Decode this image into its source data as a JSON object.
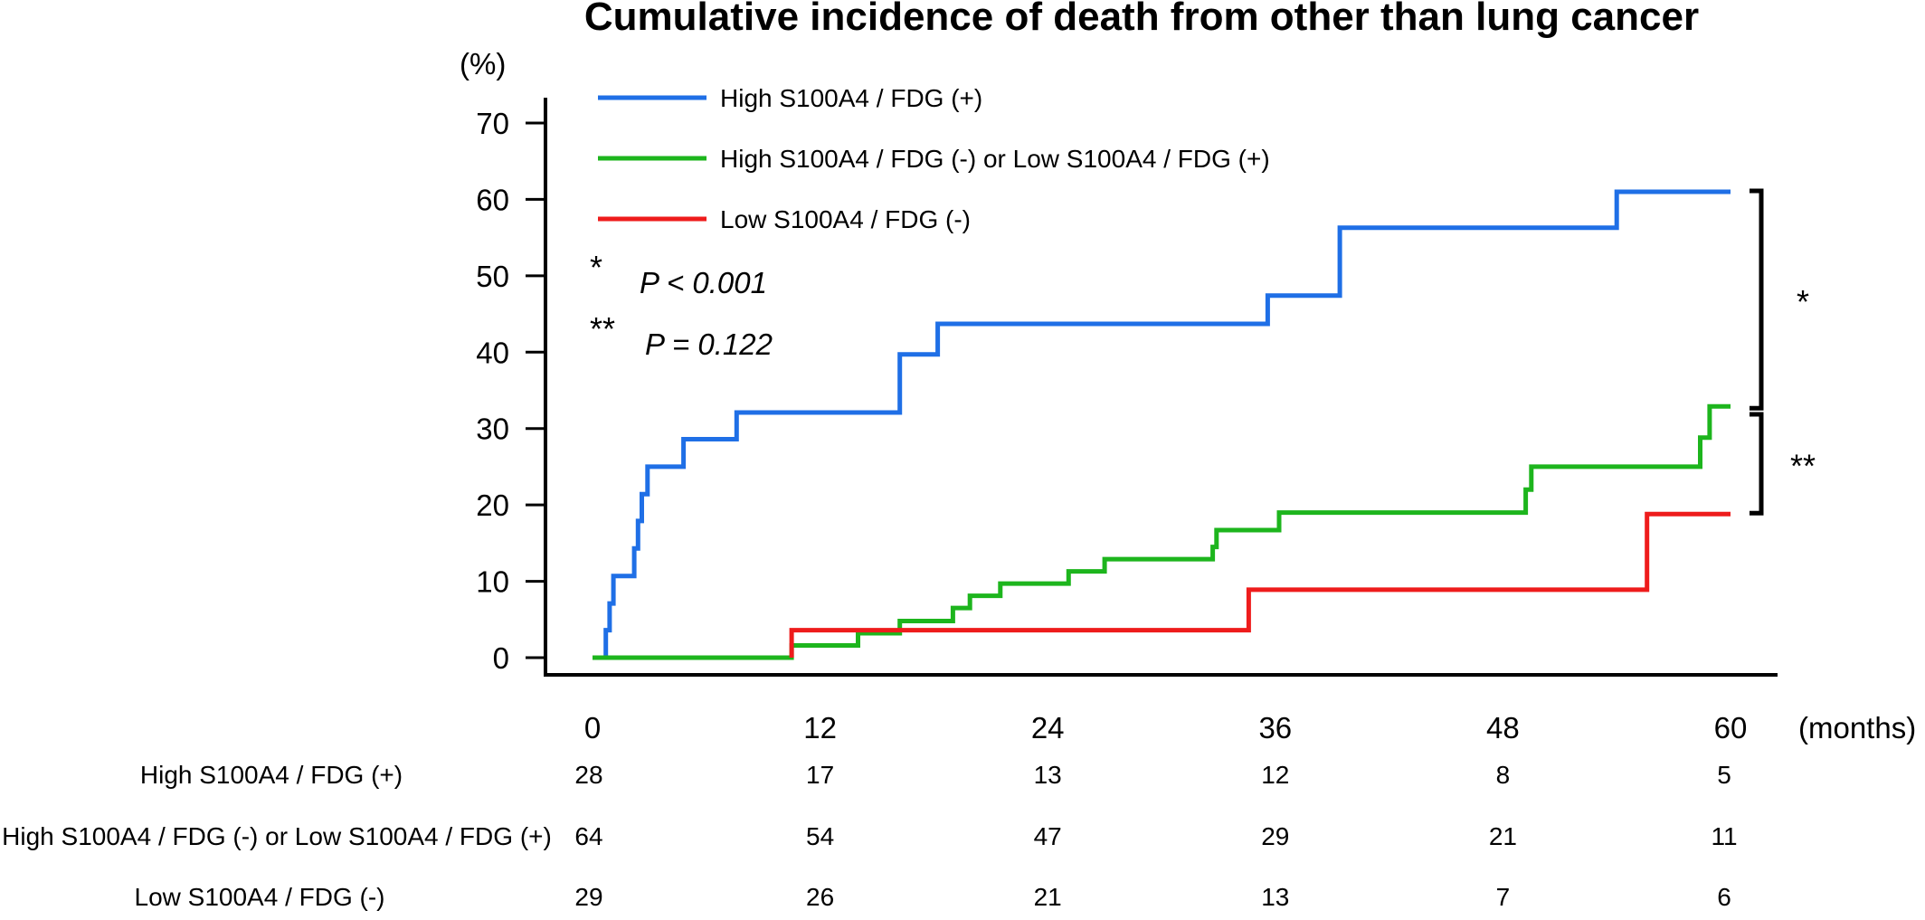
{
  "chart_data": {
    "type": "line",
    "step": true,
    "title": "Cumulative incidence of death from other than lung cancer",
    "ylabel": "(%)",
    "xlabel": "(months)",
    "xlim": [
      0,
      60
    ],
    "ylim": [
      0,
      70
    ],
    "xticks": [
      "0",
      "12",
      "24",
      "36",
      "48",
      "60"
    ],
    "yticks": [
      "0",
      "10",
      "20",
      "30",
      "40",
      "50",
      "60",
      "70"
    ],
    "grid": false,
    "legend_position": "top-left",
    "series": [
      {
        "name": "High S100A4 / FDG (+)",
        "color": "#1f6fe6",
        "points": [
          [
            0,
            0
          ],
          [
            0.7,
            0
          ],
          [
            0.7,
            3.6
          ],
          [
            0.9,
            3.6
          ],
          [
            0.9,
            7.1
          ],
          [
            1.1,
            7.1
          ],
          [
            1.1,
            10.7
          ],
          [
            2.2,
            10.7
          ],
          [
            2.2,
            14.3
          ],
          [
            2.4,
            14.3
          ],
          [
            2.4,
            17.9
          ],
          [
            2.6,
            17.9
          ],
          [
            2.6,
            21.4
          ],
          [
            2.9,
            21.4
          ],
          [
            2.9,
            25
          ],
          [
            4.8,
            25
          ],
          [
            4.8,
            28.6
          ],
          [
            7.6,
            28.6
          ],
          [
            7.6,
            32.1
          ],
          [
            16.2,
            32.1
          ],
          [
            16.2,
            39.7
          ],
          [
            18.2,
            39.7
          ],
          [
            18.2,
            43.7
          ],
          [
            35.6,
            43.7
          ],
          [
            35.6,
            47.4
          ],
          [
            39.4,
            47.4
          ],
          [
            39.4,
            56.3
          ],
          [
            54,
            56.3
          ],
          [
            54,
            61
          ],
          [
            60,
            61
          ]
        ]
      },
      {
        "name": "High S100A4 / FDG (-) or Low S100A4 / FDG (+)",
        "color": "#1db51d",
        "points": [
          [
            0,
            0
          ],
          [
            10.5,
            0
          ],
          [
            10.5,
            1.6
          ],
          [
            14,
            1.6
          ],
          [
            14,
            3.2
          ],
          [
            16.2,
            3.2
          ],
          [
            16.2,
            4.8
          ],
          [
            19,
            4.8
          ],
          [
            19,
            6.5
          ],
          [
            19.9,
            6.5
          ],
          [
            19.9,
            8.1
          ],
          [
            21.5,
            8.1
          ],
          [
            21.5,
            9.7
          ],
          [
            25.1,
            9.7
          ],
          [
            25.1,
            11.3
          ],
          [
            27,
            11.3
          ],
          [
            27,
            12.9
          ],
          [
            32.7,
            12.9
          ],
          [
            32.7,
            14.5
          ],
          [
            32.9,
            14.5
          ],
          [
            32.9,
            16.7
          ],
          [
            36.2,
            16.7
          ],
          [
            36.2,
            19
          ],
          [
            49.2,
            19
          ],
          [
            49.2,
            22
          ],
          [
            49.5,
            22
          ],
          [
            49.5,
            25
          ],
          [
            58.4,
            25
          ],
          [
            58.4,
            28.8
          ],
          [
            58.9,
            28.8
          ],
          [
            58.9,
            32.9
          ],
          [
            60,
            32.9
          ]
        ]
      },
      {
        "name": "Low S100A4 / FDG (-)",
        "color": "#ee1c1c",
        "points": [
          [
            10.5,
            0
          ],
          [
            10.5,
            3.6
          ],
          [
            34.6,
            3.6
          ],
          [
            34.6,
            8.9
          ],
          [
            55.6,
            8.9
          ],
          [
            55.6,
            18.8
          ],
          [
            60,
            18.8
          ]
        ]
      }
    ],
    "annotations": [
      {
        "star": "*",
        "text": "P < 0.001"
      },
      {
        "star": "**",
        "text": "P = 0.122"
      }
    ],
    "brackets": [
      {
        "label": "*",
        "from": 61,
        "to": 32.9
      },
      {
        "label": "**",
        "from": 32.1,
        "to": 18.8
      }
    ],
    "risk_table": {
      "times": [
        0,
        12,
        24,
        36,
        48,
        60
      ],
      "rows": [
        {
          "label": "High S100A4  / FDG (+)",
          "counts": [
            "28",
            "17",
            "13",
            "12",
            "8",
            "5"
          ]
        },
        {
          "label": "High S100A4  / FDG (-) or Low S100A4  / FDG (+)",
          "counts": [
            "64",
            "54",
            "47",
            "29",
            "21",
            "11"
          ]
        },
        {
          "label": "Low S100A4  / FDG (-)",
          "counts": [
            "29",
            "26",
            "21",
            "13",
            "7",
            "6"
          ]
        }
      ]
    }
  }
}
